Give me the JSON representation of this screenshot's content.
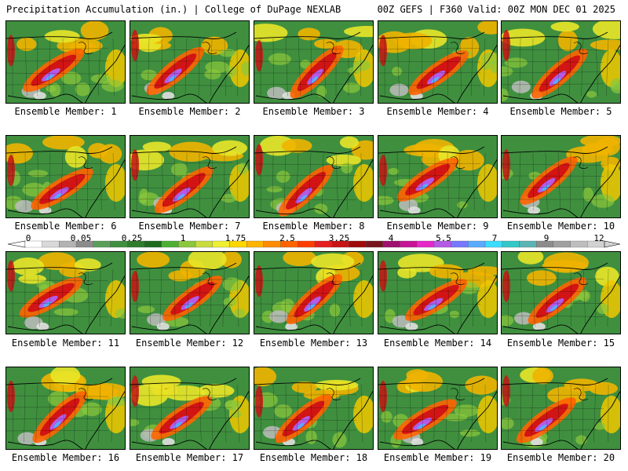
{
  "header": {
    "title_left": "Precipitation Accumulation (in.) | College of DuPage NEXLAB",
    "title_right": "00Z GEFS | F360 Valid: 00Z MON DEC 01 2025"
  },
  "colorbar": {
    "tick_labels": [
      "0",
      "0.05",
      "0.25",
      "1",
      "1.75",
      "2.5",
      "3.25",
      "4",
      "5.5",
      "7",
      "9",
      "12"
    ],
    "colors": [
      "#ffffff",
      "#d9d9d9",
      "#b3b3b3",
      "#8c8c8c",
      "#5a9e5a",
      "#3f8f3f",
      "#2e7d2e",
      "#1e6b1e",
      "#4caf32",
      "#8cc83c",
      "#c8dc3c",
      "#f0f032",
      "#ffd700",
      "#ffb400",
      "#ff8c00",
      "#ff6400",
      "#ff3c00",
      "#e61e1e",
      "#c81414",
      "#a00a0a",
      "#78141e",
      "#a0106e",
      "#c81496",
      "#e628c8",
      "#b45ae6",
      "#7878ff",
      "#5aaaff",
      "#3cdcff",
      "#32c8c8",
      "#5ab4b4",
      "#8c8c8c",
      "#a0a0a0",
      "#bebebe",
      "#d2d2d2"
    ]
  },
  "members": [
    {
      "label": "Ensemble Member: 1"
    },
    {
      "label": "Ensemble Member: 2"
    },
    {
      "label": "Ensemble Member: 3"
    },
    {
      "label": "Ensemble Member: 4"
    },
    {
      "label": "Ensemble Member: 5"
    },
    {
      "label": "Ensemble Member: 6"
    },
    {
      "label": "Ensemble Member: 7"
    },
    {
      "label": "Ensemble Member: 8"
    },
    {
      "label": "Ensemble Member: 9"
    },
    {
      "label": "Ensemble Member: 10"
    },
    {
      "label": "Ensemble Member: 11"
    },
    {
      "label": "Ensemble Member: 12"
    },
    {
      "label": "Ensemble Member: 13"
    },
    {
      "label": "Ensemble Member: 14"
    },
    {
      "label": "Ensemble Member: 15"
    },
    {
      "label": "Ensemble Member: 16"
    },
    {
      "label": "Ensemble Member: 17"
    },
    {
      "label": "Ensemble Member: 18"
    },
    {
      "label": "Ensemble Member: 19"
    },
    {
      "label": "Ensemble Member: 20"
    }
  ]
}
